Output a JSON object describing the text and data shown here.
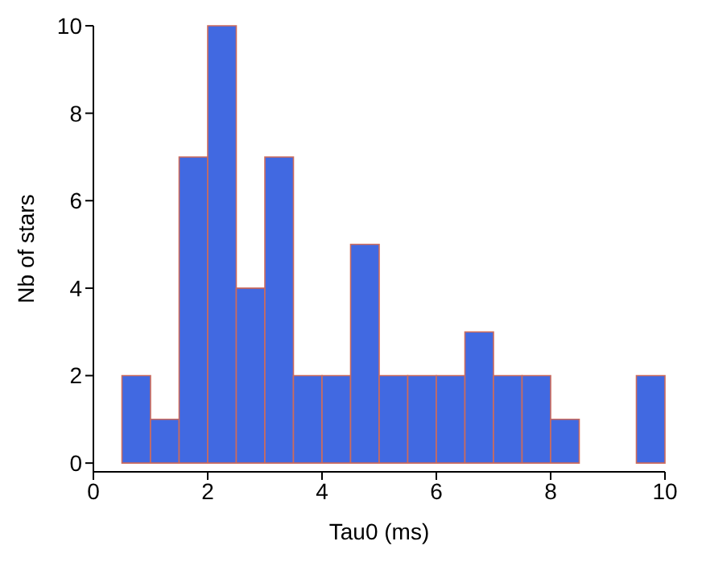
{
  "chart_data": {
    "type": "histogram",
    "xlabel": "Tau0 (ms)",
    "ylabel": "Nb of stars",
    "bins": [
      0,
      0.5,
      1,
      1.5,
      2,
      2.5,
      3,
      3.5,
      4,
      4.5,
      5,
      5.5,
      6,
      6.5,
      7,
      7.5,
      8,
      8.5,
      9,
      9.5,
      10
    ],
    "values": [
      0,
      2,
      1,
      7,
      10,
      4,
      7,
      2,
      2,
      5,
      2,
      2,
      2,
      3,
      2,
      2,
      1,
      0,
      0,
      2
    ],
    "color": "#4169e1",
    "xlim": [
      0,
      10
    ],
    "xticks": [
      0,
      2,
      4,
      6,
      8,
      10
    ],
    "ylim": [
      -0.2,
      10
    ],
    "yticks": [
      0,
      2,
      4,
      6,
      8,
      10
    ]
  }
}
